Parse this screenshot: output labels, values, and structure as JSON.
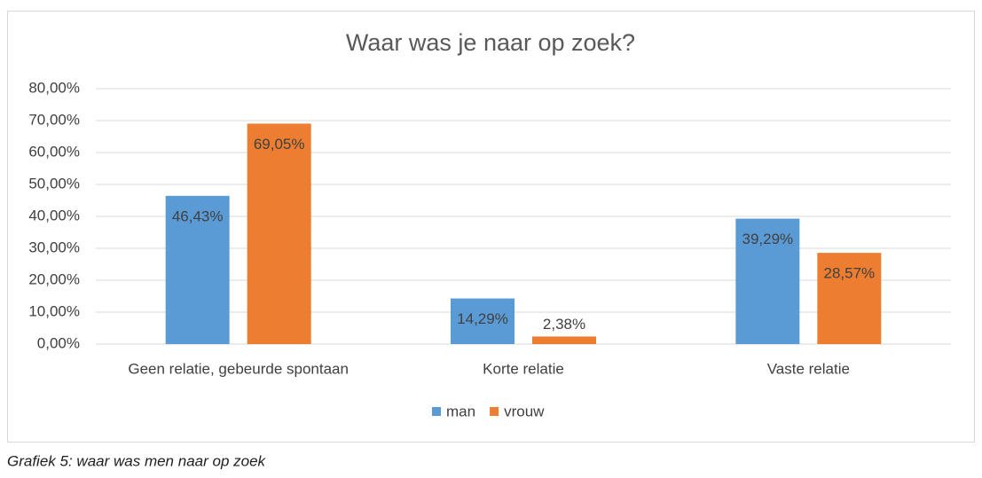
{
  "chart_data": {
    "type": "bar",
    "title": "Waar was je naar op zoek?",
    "categories": [
      "Geen relatie, gebeurde spontaan",
      "Korte relatie",
      "Vaste relatie"
    ],
    "series": [
      {
        "name": "man",
        "color": "#5b9bd5",
        "values": [
          46.43,
          14.29,
          39.29
        ],
        "value_labels": [
          "46,43%",
          "14,29%",
          "39,29%"
        ]
      },
      {
        "name": "vrouw",
        "color": "#ed7d31",
        "values": [
          69.05,
          2.38,
          28.57
        ],
        "value_labels": [
          "69,05%",
          "2,38%",
          "28,57%"
        ]
      }
    ],
    "ylim": [
      0,
      80
    ],
    "yticks": [
      {
        "value": 0,
        "label": "0,00%"
      },
      {
        "value": 10,
        "label": "10,00%"
      },
      {
        "value": 20,
        "label": "20,00%"
      },
      {
        "value": 30,
        "label": "30,00%"
      },
      {
        "value": 40,
        "label": "40,00%"
      },
      {
        "value": 50,
        "label": "50,00%"
      },
      {
        "value": 60,
        "label": "60,00%"
      },
      {
        "value": 70,
        "label": "70,00%"
      },
      {
        "value": 80,
        "label": "80,00%"
      }
    ],
    "grid": true,
    "legend": "bottom"
  },
  "caption": "Grafiek 5: waar was men naar op zoek"
}
